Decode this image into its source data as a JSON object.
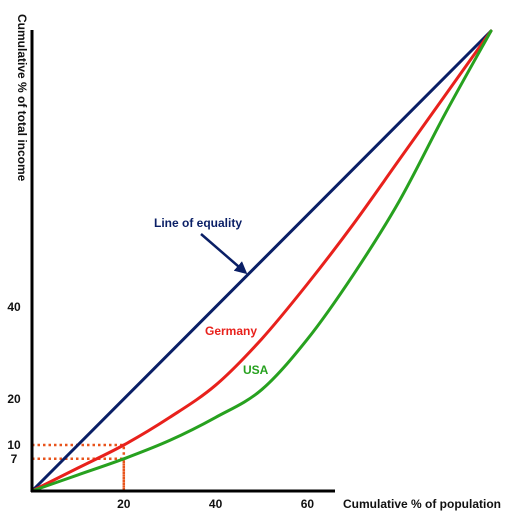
{
  "chart_data": {
    "type": "line",
    "xlabel": "Cumulative % of population",
    "ylabel": "Cumulative % of total income",
    "xlim": [
      0,
      100
    ],
    "ylim": [
      0,
      100
    ],
    "x_ticks": [
      20,
      40,
      60
    ],
    "y_ticks": [
      7,
      10,
      20,
      40
    ],
    "grid": false,
    "legend": "none",
    "series": [
      {
        "name": "Line of equality",
        "color": "#0a1f66",
        "x": [
          0,
          100
        ],
        "y": [
          0,
          100
        ]
      },
      {
        "name": "Germany",
        "color": "#e8211c",
        "x": [
          0,
          10,
          20,
          30,
          40,
          50,
          60,
          70,
          80,
          90,
          100
        ],
        "y": [
          0,
          5,
          10,
          16,
          23,
          33,
          45,
          58,
          72,
          86,
          100
        ]
      },
      {
        "name": "USA",
        "color": "#27a11f",
        "x": [
          0,
          10,
          20,
          30,
          40,
          50,
          60,
          70,
          80,
          90,
          100
        ],
        "y": [
          0,
          3.5,
          7,
          11,
          16,
          22,
          33,
          47,
          63,
          82,
          100
        ]
      }
    ],
    "annotations": [
      {
        "text": "Line of equality",
        "color": "#0a1f66",
        "arrow_to": [
          46.5,
          47.5
        ]
      },
      {
        "text": "Germany",
        "color": "#e8211c"
      },
      {
        "text": "USA",
        "color": "#27a11f"
      }
    ],
    "guides": [
      {
        "x": 20,
        "y": 10,
        "color": "#e8541c"
      },
      {
        "x": 20,
        "y": 7,
        "color": "#e8541c"
      }
    ]
  }
}
